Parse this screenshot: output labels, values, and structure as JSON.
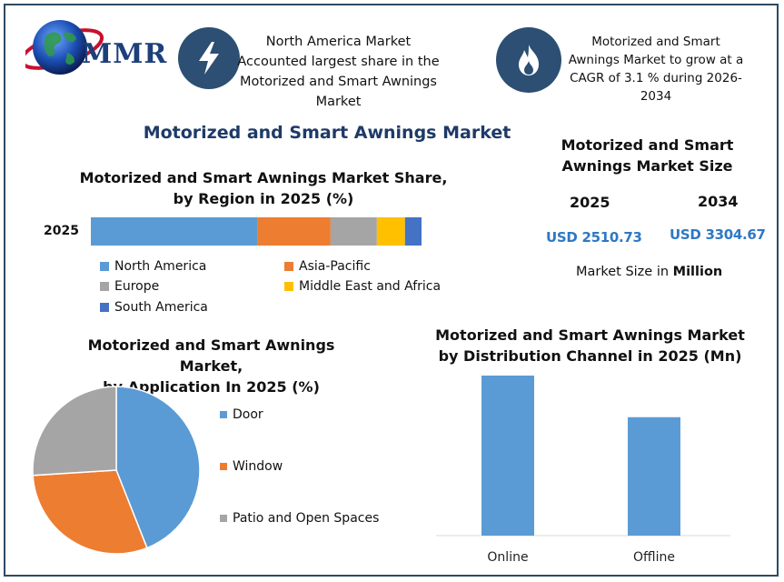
{
  "brand": {
    "logo_text": "MMR"
  },
  "info_boxes": [
    {
      "icon": "lightning-bolt-icon",
      "text": [
        "North America Market",
        "Accounted largest share in the",
        "Motorized and Smart Awnings",
        "Market"
      ]
    },
    {
      "icon": "flame-icon",
      "text": [
        "Motorized and Smart",
        "Awnings Market to grow at a",
        "CAGR of 3.1 % during 2026-",
        "2034"
      ]
    }
  ],
  "main_title": "Motorized and Smart Awnings Market",
  "market_size": {
    "title_lines": [
      "Motorized and Smart",
      "Awnings Market Size"
    ],
    "year_a": "2025",
    "year_b": "2034",
    "value_a": "USD 2510.73",
    "value_b": "USD 3304.67",
    "note_prefix": "Market Size in ",
    "note_bold": "Million"
  },
  "colors": {
    "blue": "#5b9bd5",
    "orange": "#ed7d31",
    "gray": "#a5a5a5",
    "yellow": "#ffc000",
    "darkblue": "#4472c4",
    "title_navy": "#1e3a68",
    "icon_bg": "#2c4f73"
  },
  "chart_data": [
    {
      "type": "bar",
      "orientation": "horizontal-stacked",
      "title": "Motorized and Smart Awnings Market Share, by Region in 2025 (%)",
      "title_lines": [
        "Motorized and Smart Awnings Market Share,",
        "by Region in 2025 (%)"
      ],
      "categories": [
        "2025"
      ],
      "series": [
        {
          "name": "North America",
          "values": [
            50.5
          ],
          "color": "#5b9bd5"
        },
        {
          "name": "Asia-Pacific",
          "values": [
            22
          ],
          "color": "#ed7d31"
        },
        {
          "name": "Europe",
          "values": [
            14
          ],
          "color": "#a5a5a5"
        },
        {
          "name": "Middle East and Africa",
          "values": [
            8.5
          ],
          "color": "#ffc000"
        },
        {
          "name": "South America",
          "values": [
            5
          ],
          "color": "#4472c4"
        }
      ],
      "legend": "bottom"
    },
    {
      "type": "pie",
      "title": "Motorized and Smart Awnings Market, by Application In 2025 (%)",
      "title_lines": [
        "Motorized and Smart Awnings Market,",
        "by Application In 2025 (%)"
      ],
      "slices": [
        {
          "label": "Door",
          "value": 44,
          "color": "#5b9bd5"
        },
        {
          "label": "Window",
          "value": 30,
          "color": "#ed7d31"
        },
        {
          "label": "Patio and Open Spaces",
          "value": 26,
          "color": "#a5a5a5"
        }
      ],
      "legend": "right"
    },
    {
      "type": "bar",
      "title": "Motorized and Smart Awnings Market by Distribution Channel in 2025 (Mn)",
      "title_lines": [
        "Motorized and Smart Awnings Market",
        "by Distribution Channel in 2025 (Mn)"
      ],
      "categories": [
        "Online",
        "Offline"
      ],
      "values": [
        1.0,
        0.74
      ],
      "color": "#5b9bd5",
      "grid": false
    }
  ]
}
